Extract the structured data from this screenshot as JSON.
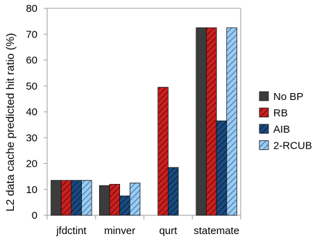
{
  "chart_data": {
    "type": "bar",
    "title": "",
    "xlabel": "",
    "ylabel": "L2 data cache predicted hit ratio (%)",
    "ylim": [
      0,
      80
    ],
    "yticks": [
      0,
      10,
      20,
      30,
      40,
      50,
      60,
      70,
      80
    ],
    "grid": false,
    "legend_position": "right",
    "categories": [
      "jfdctint",
      "minver",
      "qurt",
      "statemate"
    ],
    "series": [
      {
        "name": "No BP",
        "color": "#3c3c3c",
        "pattern": "solid",
        "values": [
          13.5,
          11.5,
          0,
          72.5
        ]
      },
      {
        "name": "RB",
        "color": "#cc1f1f",
        "pattern": "hatch",
        "values": [
          13.5,
          12.0,
          49.5,
          72.5
        ]
      },
      {
        "name": "AIB",
        "color": "#1a4a80",
        "pattern": "hatch",
        "values": [
          13.5,
          7.5,
          18.5,
          36.5
        ]
      },
      {
        "name": "2-RCUB",
        "color": "#9ccbf0",
        "pattern": "hatch",
        "values": [
          13.5,
          12.5,
          0,
          72.5
        ]
      }
    ]
  }
}
